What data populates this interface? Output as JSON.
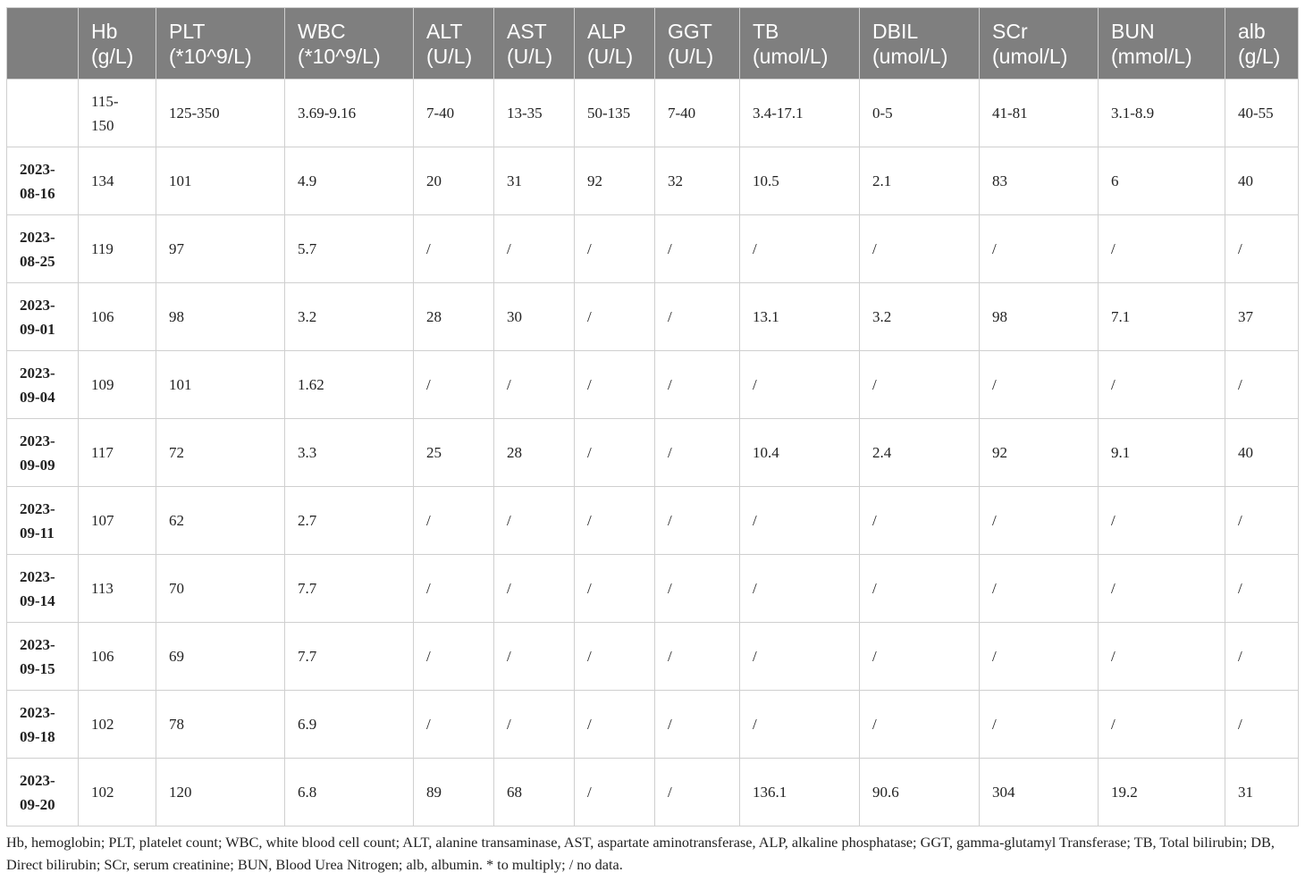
{
  "table": {
    "columns": [
      {
        "name": "Hb",
        "unit": "(g/L)"
      },
      {
        "name": "PLT",
        "unit": "(*10^9/L)"
      },
      {
        "name": "WBC",
        "unit": "(*10^9/L)"
      },
      {
        "name": "ALT",
        "unit": "(U/L)"
      },
      {
        "name": "AST",
        "unit": "(U/L)"
      },
      {
        "name": "ALP",
        "unit": "(U/L)"
      },
      {
        "name": "GGT",
        "unit": "(U/L)"
      },
      {
        "name": "TB",
        "unit": "(umol/L)"
      },
      {
        "name": "DBIL",
        "unit": "(umol/L)"
      },
      {
        "name": "SCr",
        "unit": "(umol/L)"
      },
      {
        "name": "BUN",
        "unit": "(mmol/L)"
      },
      {
        "name": "alb",
        "unit": "(g/L)"
      }
    ],
    "reference": [
      "115-150",
      "125-350",
      "3.69-9.16",
      "7-40",
      "13-35",
      "50-135",
      "7-40",
      "3.4-17.1",
      "0-5",
      "41-81",
      "3.1-8.9",
      "40-55"
    ],
    "rows": [
      {
        "date": "2023-08-16",
        "values": [
          "134",
          "101",
          "4.9",
          "20",
          "31",
          "92",
          "32",
          "10.5",
          "2.1",
          "83",
          "6",
          "40"
        ]
      },
      {
        "date": "2023-08-25",
        "values": [
          "119",
          "97",
          "5.7",
          "/",
          "/",
          "/",
          "/",
          "/",
          "/",
          "/",
          "/",
          "/"
        ]
      },
      {
        "date": "2023-09-01",
        "values": [
          "106",
          "98",
          "3.2",
          "28",
          "30",
          "/",
          "/",
          "13.1",
          "3.2",
          "98",
          "7.1",
          "37"
        ]
      },
      {
        "date": "2023-09-04",
        "values": [
          "109",
          "101",
          "1.62",
          "/",
          "/",
          "/",
          "/",
          "/",
          "/",
          "/",
          "/",
          "/"
        ]
      },
      {
        "date": "2023-09-09",
        "values": [
          "117",
          "72",
          "3.3",
          "25",
          "28",
          "/",
          "/",
          "10.4",
          "2.4",
          "92",
          "9.1",
          "40"
        ]
      },
      {
        "date": "2023-09-11",
        "values": [
          "107",
          "62",
          "2.7",
          "/",
          "/",
          "/",
          "/",
          "/",
          "/",
          "/",
          "/",
          "/"
        ]
      },
      {
        "date": "2023-09-14",
        "values": [
          "113",
          "70",
          "7.7",
          "/",
          "/",
          "/",
          "/",
          "/",
          "/",
          "/",
          "/",
          "/"
        ]
      },
      {
        "date": "2023-09-15",
        "values": [
          "106",
          "69",
          "7.7",
          "/",
          "/",
          "/",
          "/",
          "/",
          "/",
          "/",
          "/",
          "/"
        ]
      },
      {
        "date": "2023-09-18",
        "values": [
          "102",
          "78",
          "6.9",
          "/",
          "/",
          "/",
          "/",
          "/",
          "/",
          "/",
          "/",
          "/"
        ]
      },
      {
        "date": "2023-09-20",
        "values": [
          "102",
          "120",
          "6.8",
          "89",
          "68",
          "/",
          "/",
          "136.1",
          "90.6",
          "304",
          "19.2",
          "31"
        ]
      }
    ]
  },
  "footnote": "Hb, hemoglobin; PLT, platelet count; WBC, white blood cell count; ALT, alanine transaminase, AST, aspartate aminotransferase, ALP, alkaline phosphatase; GGT, gamma-glutamyl Transferase; TB, Total bilirubin; DB, Direct bilirubin; SCr, serum creatinine; BUN, Blood Urea Nitrogen; alb, albumin. * to multiply; / no data."
}
